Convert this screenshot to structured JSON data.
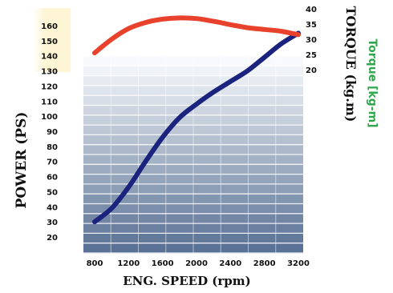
{
  "chart_data": {
    "type": "line",
    "x_ticks": [
      800,
      1200,
      1600,
      2000,
      2400,
      2800,
      3200
    ],
    "xlim": [
      800,
      3200
    ],
    "xlabel": "ENG. SPEED (rpm)",
    "ylabel_left": "POWER (PS)",
    "ylim_left": [
      10,
      165
    ],
    "y_ticks_left": [
      20,
      30,
      40,
      50,
      60,
      70,
      80,
      90,
      100,
      110,
      120,
      130,
      140,
      150,
      160
    ],
    "ylabel_right": "TORQUE (kg.m)",
    "ylabel_right_alt": "Torque [kg-m]",
    "ylim_right": [
      15,
      40
    ],
    "y_ticks_right": [
      20,
      25,
      30,
      35,
      40
    ],
    "grid": true,
    "series": [
      {
        "axis": "left",
        "color": "#1a237e",
        "x": [
          800,
          1000,
          1200,
          1400,
          1600,
          1800,
          2000,
          2200,
          2400,
          2600,
          2800,
          3000,
          3200
        ],
        "y": [
          30,
          39,
          53,
          70,
          86,
          99,
          108,
          116,
          123,
          130,
          139,
          148,
          155
        ]
      },
      {
        "axis": "right",
        "color": "#e8412c",
        "x": [
          800,
          1000,
          1200,
          1400,
          1600,
          1800,
          2000,
          2200,
          2400,
          2600,
          2800,
          3000,
          3200
        ],
        "y": [
          25.5,
          30.0,
          33.5,
          35.5,
          36.6,
          37.0,
          36.8,
          35.9,
          34.8,
          33.8,
          33.2,
          32.6,
          31.5
        ]
      }
    ]
  },
  "colors": {
    "band_top": "#f7f9fc",
    "band_bottom": "#5a7295",
    "grid": "#ffffff",
    "yellow_panel": "#fdf5d3",
    "label_green": "#2ea84a"
  }
}
